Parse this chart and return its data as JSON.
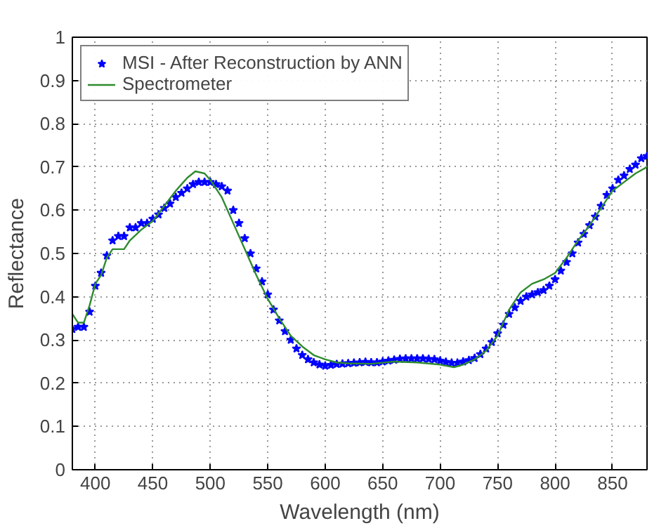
{
  "chart_data": {
    "type": "line",
    "xlabel": "Wavelength (nm)",
    "ylabel": "Reflectance",
    "xlim": [
      380,
      880
    ],
    "ylim": [
      0,
      1
    ],
    "xticks": [
      400,
      450,
      500,
      550,
      600,
      650,
      700,
      750,
      800,
      850
    ],
    "yticks": [
      0,
      0.1,
      0.2,
      0.3,
      0.4,
      0.5,
      0.6,
      0.7,
      0.8,
      0.9,
      1
    ],
    "grid": true,
    "legend": "top left",
    "series": [
      {
        "name": "MSI - After Reconstruction by ANN",
        "type": "scatter",
        "marker": "star",
        "color": "#0000ff",
        "x": [
          380,
          385,
          390,
          395,
          400,
          405,
          410,
          415,
          420,
          425,
          430,
          435,
          440,
          445,
          450,
          455,
          460,
          465,
          470,
          475,
          480,
          485,
          490,
          495,
          500,
          505,
          510,
          515,
          520,
          525,
          530,
          535,
          540,
          545,
          550,
          555,
          560,
          565,
          570,
          575,
          580,
          585,
          590,
          595,
          600,
          605,
          610,
          615,
          620,
          625,
          630,
          635,
          640,
          645,
          650,
          655,
          660,
          665,
          670,
          675,
          680,
          685,
          690,
          695,
          700,
          705,
          710,
          715,
          720,
          725,
          730,
          735,
          740,
          745,
          750,
          755,
          760,
          765,
          770,
          775,
          780,
          785,
          790,
          795,
          800,
          805,
          810,
          815,
          820,
          825,
          830,
          835,
          840,
          845,
          850,
          855,
          860,
          865,
          870,
          875,
          880
        ],
        "values": [
          0.325,
          0.33,
          0.33,
          0.365,
          0.425,
          0.455,
          0.495,
          0.53,
          0.54,
          0.54,
          0.56,
          0.56,
          0.57,
          0.57,
          0.58,
          0.59,
          0.605,
          0.615,
          0.63,
          0.64,
          0.65,
          0.66,
          0.665,
          0.665,
          0.665,
          0.66,
          0.655,
          0.645,
          0.6,
          0.57,
          0.535,
          0.5,
          0.465,
          0.435,
          0.405,
          0.37,
          0.345,
          0.32,
          0.3,
          0.28,
          0.265,
          0.255,
          0.248,
          0.243,
          0.24,
          0.242,
          0.244,
          0.245,
          0.246,
          0.247,
          0.248,
          0.249,
          0.248,
          0.248,
          0.25,
          0.252,
          0.254,
          0.256,
          0.257,
          0.257,
          0.257,
          0.257,
          0.256,
          0.255,
          0.252,
          0.249,
          0.247,
          0.247,
          0.25,
          0.253,
          0.258,
          0.267,
          0.28,
          0.295,
          0.315,
          0.335,
          0.36,
          0.375,
          0.39,
          0.4,
          0.405,
          0.41,
          0.415,
          0.425,
          0.44,
          0.46,
          0.48,
          0.5,
          0.525,
          0.545,
          0.565,
          0.585,
          0.61,
          0.635,
          0.65,
          0.67,
          0.68,
          0.695,
          0.705,
          0.72,
          0.725
        ]
      },
      {
        "name": "Spectrometer",
        "line_style": "solid",
        "color": "#2e8b2e",
        "x": [
          380,
          385,
          390,
          395,
          400,
          405,
          410,
          415,
          420,
          425,
          430,
          440,
          450,
          460,
          470,
          480,
          487,
          495,
          500,
          510,
          520,
          530,
          540,
          550,
          560,
          570,
          580,
          590,
          600,
          610,
          620,
          640,
          660,
          680,
          700,
          712,
          720,
          730,
          740,
          750,
          760,
          770,
          780,
          790,
          800,
          810,
          820,
          830,
          840,
          850,
          860,
          870,
          880
        ],
        "values": [
          0.36,
          0.34,
          0.34,
          0.38,
          0.43,
          0.45,
          0.49,
          0.51,
          0.51,
          0.51,
          0.53,
          0.555,
          0.575,
          0.61,
          0.645,
          0.675,
          0.69,
          0.685,
          0.67,
          0.63,
          0.57,
          0.51,
          0.45,
          0.395,
          0.35,
          0.31,
          0.285,
          0.265,
          0.255,
          0.248,
          0.246,
          0.245,
          0.25,
          0.248,
          0.243,
          0.237,
          0.243,
          0.255,
          0.275,
          0.31,
          0.37,
          0.41,
          0.43,
          0.44,
          0.455,
          0.49,
          0.53,
          0.565,
          0.605,
          0.645,
          0.665,
          0.685,
          0.7
        ]
      }
    ]
  }
}
